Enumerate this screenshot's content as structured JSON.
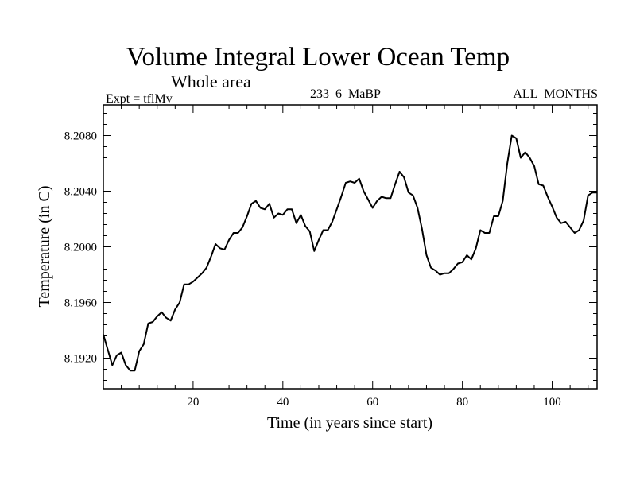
{
  "chart_data": {
    "type": "line",
    "title": "Volume Integral Lower Ocean Temp",
    "subtitle": "Whole area",
    "left_label": "Expt = tflMv",
    "center_label": "233_6_MaBP",
    "right_label": "ALL_MONTHS",
    "xlabel": "Time (in years since start)",
    "ylabel": "Temperature (in C)",
    "xlim": [
      0,
      110
    ],
    "ylim": [
      8.1898,
      8.2102
    ],
    "x_ticks": [
      20,
      40,
      60,
      80,
      100
    ],
    "x_tick_labels": [
      "20",
      "40",
      "60",
      "80",
      "100"
    ],
    "y_ticks": [
      8.192,
      8.196,
      8.2,
      8.204,
      8.208
    ],
    "y_tick_labels": [
      "8.1920",
      "8.1960",
      "8.2000",
      "8.2040",
      "8.2080"
    ],
    "grid": false,
    "series": [
      {
        "name": "Volume Integral Lower Ocean Temp",
        "x": [
          0,
          1,
          2,
          3,
          4,
          5,
          6,
          7,
          8,
          9,
          10,
          11,
          12,
          13,
          14,
          15,
          16,
          17,
          18,
          19,
          20,
          21,
          22,
          23,
          24,
          25,
          26,
          27,
          28,
          29,
          30,
          31,
          32,
          33,
          34,
          35,
          36,
          37,
          38,
          39,
          40,
          41,
          42,
          43,
          44,
          45,
          46,
          47,
          48,
          49,
          50,
          51,
          52,
          53,
          54,
          55,
          56,
          57,
          58,
          59,
          60,
          61,
          62,
          63,
          64,
          65,
          66,
          67,
          68,
          69,
          70,
          71,
          72,
          73,
          74,
          75,
          76,
          77,
          78,
          79,
          80,
          81,
          82,
          83,
          84,
          85,
          86,
          87,
          88,
          89,
          90,
          91,
          92,
          93,
          94,
          95,
          96,
          97,
          98,
          99,
          100,
          101,
          102,
          103,
          104,
          105,
          106,
          107,
          108,
          109,
          110
        ],
        "y": [
          8.1937,
          8.1926,
          8.1915,
          8.1922,
          8.1924,
          8.1915,
          8.1911,
          8.1911,
          8.1925,
          8.193,
          8.1945,
          8.1946,
          8.195,
          8.1953,
          8.1949,
          8.1947,
          8.1955,
          8.196,
          8.1973,
          8.1973,
          8.1975,
          8.1978,
          8.1981,
          8.1985,
          8.1993,
          8.2002,
          8.1999,
          8.1998,
          8.2005,
          8.201,
          8.201,
          8.2014,
          8.2022,
          8.2031,
          8.2033,
          8.2028,
          8.2027,
          8.2031,
          8.2021,
          8.2024,
          8.2023,
          8.2027,
          8.2027,
          8.2017,
          8.2023,
          8.2015,
          8.2011,
          8.1997,
          8.2005,
          8.2012,
          8.2012,
          8.2018,
          8.2027,
          8.2036,
          8.2046,
          8.2047,
          8.2046,
          8.2049,
          8.204,
          8.2034,
          8.2028,
          8.2033,
          8.2036,
          8.2035,
          8.2035,
          8.2045,
          8.2054,
          8.205,
          8.2039,
          8.2037,
          8.2028,
          8.2013,
          8.1994,
          8.1985,
          8.1983,
          8.198,
          8.1981,
          8.1981,
          8.1984,
          8.1988,
          8.1989,
          8.1994,
          8.1991,
          8.1999,
          8.2012,
          8.201,
          8.201,
          8.2022,
          8.2022,
          8.2033,
          8.206,
          8.208,
          8.2078,
          8.2064,
          8.2068,
          8.2064,
          8.2058,
          8.2045,
          8.2044,
          8.2036,
          8.2029,
          8.2021,
          8.2017,
          8.2018,
          8.2014,
          8.201,
          8.2012,
          8.2019,
          8.2037,
          8.2039,
          8.2039
        ]
      }
    ]
  }
}
